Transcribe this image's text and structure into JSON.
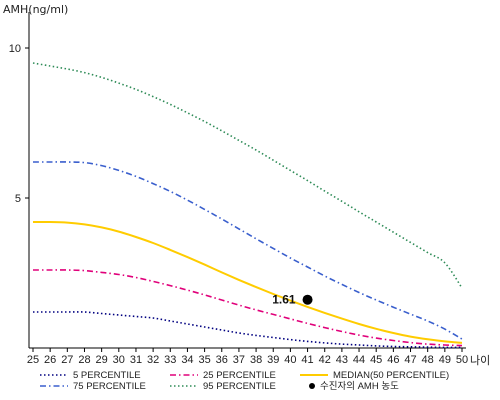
{
  "chart_data": {
    "type": "line",
    "ylabel": "AMH(ng/ml)",
    "xlabel": "나이",
    "x": [
      25,
      26,
      27,
      28,
      29,
      30,
      31,
      32,
      33,
      34,
      35,
      36,
      37,
      38,
      39,
      40,
      41,
      42,
      43,
      44,
      45,
      46,
      47,
      48,
      49,
      50
    ],
    "ylim": [
      0,
      11
    ],
    "yticks": [
      5,
      10
    ],
    "grid": false,
    "legend_position": "bottom",
    "series": [
      {
        "name": "5 PERCENTILE",
        "color": "#000080",
        "dash": "dotted",
        "values": [
          1.2,
          1.2,
          1.2,
          1.2,
          1.15,
          1.1,
          1.05,
          1.0,
          0.9,
          0.8,
          0.7,
          0.6,
          0.5,
          0.42,
          0.35,
          0.28,
          0.22,
          0.17,
          0.13,
          0.1,
          0.07,
          0.05,
          0.04,
          0.03,
          0.02,
          0.02
        ]
      },
      {
        "name": "25 PERCENTILE",
        "color": "#e0007a",
        "dash": "dashdot",
        "values": [
          2.6,
          2.6,
          2.6,
          2.58,
          2.52,
          2.45,
          2.35,
          2.22,
          2.08,
          1.93,
          1.77,
          1.6,
          1.43,
          1.27,
          1.12,
          0.97,
          0.82,
          0.68,
          0.55,
          0.43,
          0.33,
          0.25,
          0.18,
          0.13,
          0.1,
          0.08
        ]
      },
      {
        "name": "MEDIAN(50 PERCENTILE)",
        "color": "#ffcc00",
        "dash": "solid",
        "values": [
          4.2,
          4.2,
          4.18,
          4.12,
          4.02,
          3.88,
          3.7,
          3.5,
          3.27,
          3.03,
          2.78,
          2.52,
          2.27,
          2.03,
          1.8,
          1.58,
          1.37,
          1.17,
          0.98,
          0.8,
          0.64,
          0.5,
          0.38,
          0.29,
          0.22,
          0.17
        ]
      },
      {
        "name": "75 PERCENTILE",
        "color": "#3a5fcd",
        "dash": "dashdot",
        "values": [
          6.2,
          6.2,
          6.2,
          6.18,
          6.08,
          5.92,
          5.72,
          5.48,
          5.22,
          4.93,
          4.62,
          4.3,
          3.97,
          3.64,
          3.32,
          3.0,
          2.7,
          2.4,
          2.12,
          1.85,
          1.6,
          1.36,
          1.13,
          0.9,
          0.63,
          0.3
        ]
      },
      {
        "name": "95 PERCENTILE",
        "color": "#2e8b57",
        "dash": "dotted",
        "values": [
          9.5,
          9.4,
          9.3,
          9.18,
          9.02,
          8.83,
          8.62,
          8.38,
          8.12,
          7.84,
          7.55,
          7.24,
          6.92,
          6.6,
          6.26,
          5.92,
          5.58,
          5.23,
          4.89,
          4.54,
          4.2,
          3.86,
          3.52,
          3.18,
          2.84,
          2.0
        ]
      }
    ],
    "marker": {
      "name": "수진자의 AMH 농도",
      "x": 41,
      "y": 1.61,
      "label": "1.61",
      "color": "#000000"
    }
  }
}
